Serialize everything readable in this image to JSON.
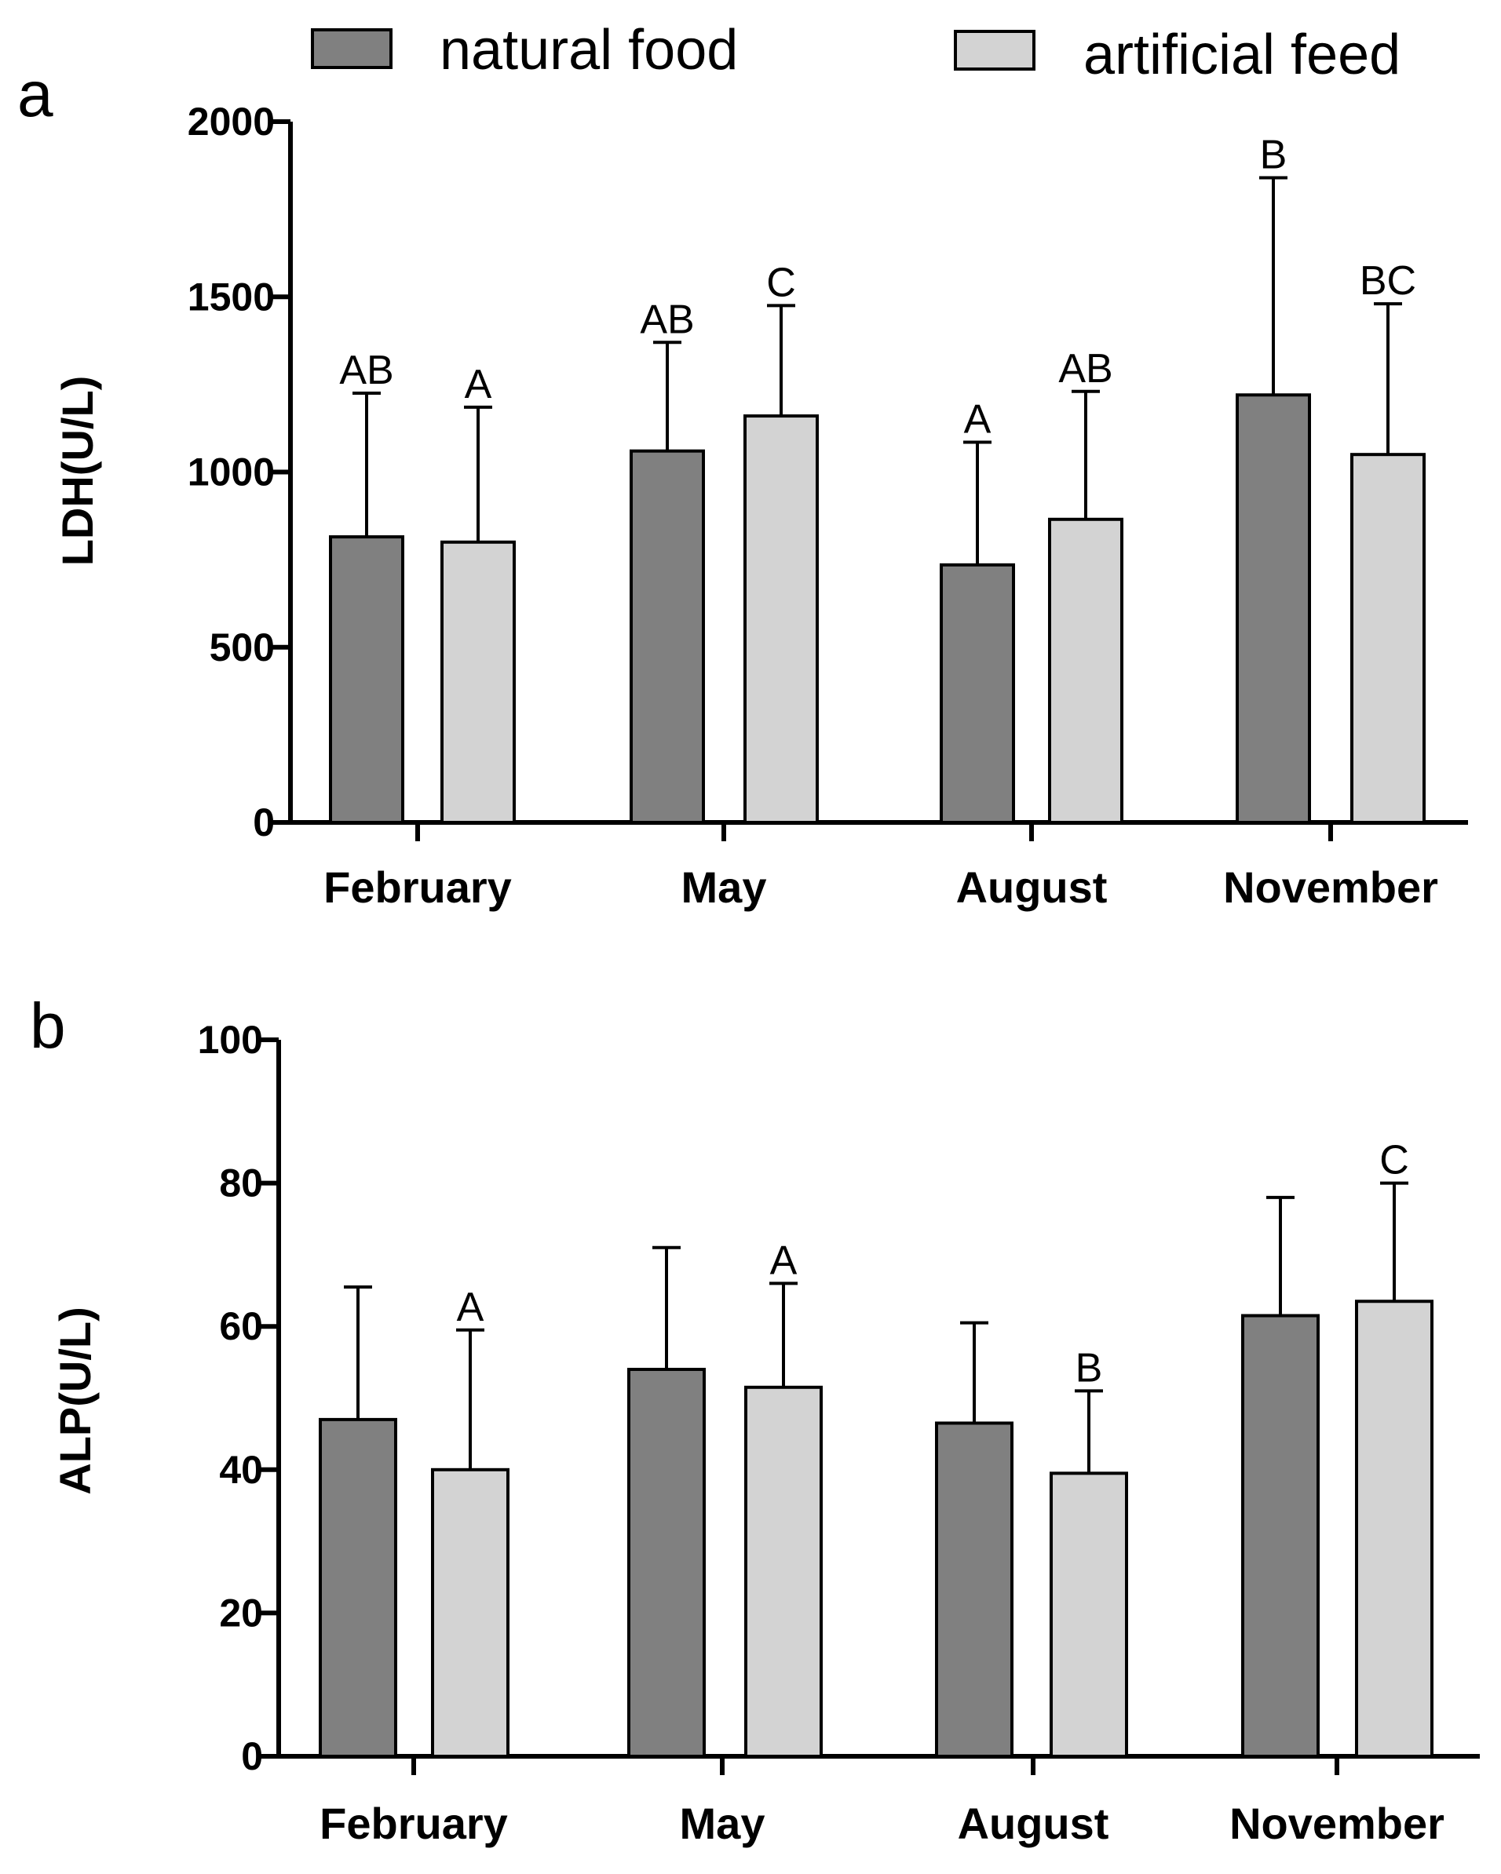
{
  "legend": [
    {
      "name": "natural food",
      "color": "#808080"
    },
    {
      "name": "artificial feed",
      "color": "#d3d3d3"
    }
  ],
  "chart_data": [
    {
      "type": "bar",
      "panel": "a",
      "categories": [
        "February",
        "May",
        "August",
        "November"
      ],
      "series": [
        {
          "name": "natural food",
          "values": [
            815,
            1060,
            735,
            1220
          ],
          "errors": [
            410,
            310,
            350,
            620
          ],
          "labels": [
            "AB",
            "AB",
            "A",
            "B"
          ]
        },
        {
          "name": "artificial feed",
          "values": [
            800,
            1160,
            865,
            1050
          ],
          "errors": [
            385,
            315,
            365,
            430
          ],
          "labels": [
            "A",
            "C",
            "AB",
            "BC"
          ]
        }
      ],
      "ylabel": "LDH(U/L)",
      "ylim": [
        0,
        2000
      ],
      "yticks": [
        0,
        500,
        1000,
        1500,
        2000
      ],
      "grid": false
    },
    {
      "type": "bar",
      "panel": "b",
      "categories": [
        "February",
        "May",
        "August",
        "November"
      ],
      "series": [
        {
          "name": "natural food",
          "values": [
            47,
            54,
            46.5,
            61.5
          ],
          "errors": [
            18.5,
            17,
            14,
            16.5
          ],
          "labels": [
            "",
            "",
            "",
            ""
          ]
        },
        {
          "name": "artificial feed",
          "values": [
            40,
            51.5,
            39.5,
            63.5
          ],
          "errors": [
            19.5,
            14.5,
            11.5,
            16.5
          ],
          "labels": [
            "A",
            "A",
            "B",
            "C"
          ]
        }
      ],
      "ylabel": "ALP(U/L)",
      "ylim": [
        0,
        100
      ],
      "yticks": [
        0,
        20,
        40,
        60,
        80,
        100
      ],
      "grid": false
    }
  ]
}
